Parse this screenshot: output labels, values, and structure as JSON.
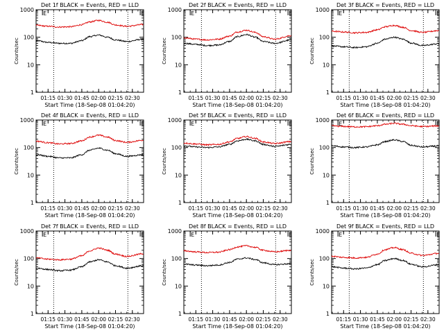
{
  "figure": {
    "time_ticks": [
      "01:15",
      "01:30",
      "01:45",
      "02:00",
      "02:15",
      "02:30"
    ],
    "y_ticks": [
      "1",
      "10",
      "100",
      "1000"
    ],
    "ylabel": "Counts/sec",
    "xlabel": "Start Time (18-Sep-08 01:04:20)",
    "event_marker_label": "E",
    "colors": {
      "events": "#000000",
      "lld": "#dd0000",
      "axes": "#000000"
    }
  },
  "chart_data": [
    {
      "type": "line",
      "title": "Det 1f BLACK = Events, RED = LLD",
      "x_range": [
        "01:04:20",
        "02:40"
      ],
      "ylim": [
        1,
        1000
      ],
      "yscale": "log",
      "event_marks": [
        "01:10",
        "02:37"
      ],
      "marked_times": [
        "01:20",
        "02:26"
      ],
      "series": [
        {
          "label": "Events",
          "x": [
            "01:05",
            "01:15",
            "01:25",
            "01:35",
            "01:45",
            "01:52",
            "02:00",
            "02:08",
            "02:15",
            "02:25",
            "02:40"
          ],
          "y": [
            75,
            65,
            60,
            60,
            75,
            105,
            120,
            100,
            80,
            70,
            85
          ]
        },
        {
          "label": "LLD",
          "x": [
            "01:05",
            "01:15",
            "01:25",
            "01:35",
            "01:45",
            "01:52",
            "02:00",
            "02:08",
            "02:15",
            "02:25",
            "02:40"
          ],
          "y": [
            270,
            250,
            235,
            240,
            285,
            360,
            410,
            350,
            280,
            250,
            290
          ]
        }
      ]
    },
    {
      "type": "line",
      "title": "Det 2f BLACK = Events, RED = LLD",
      "x_range": [
        "01:04:20",
        "02:40"
      ],
      "ylim": [
        1,
        1000
      ],
      "yscale": "log",
      "event_marks": [
        "01:10",
        "02:37"
      ],
      "marked_times": [
        "01:20",
        "02:26"
      ],
      "series": [
        {
          "label": "Events",
          "x": [
            "01:05",
            "01:15",
            "01:25",
            "01:35",
            "01:45",
            "01:52",
            "02:00",
            "02:08",
            "02:15",
            "02:25",
            "02:40"
          ],
          "y": [
            60,
            55,
            50,
            52,
            70,
            105,
            125,
            100,
            70,
            60,
            80
          ]
        },
        {
          "label": "LLD",
          "x": [
            "01:05",
            "01:15",
            "01:25",
            "01:35",
            "01:45",
            "01:52",
            "02:00",
            "02:08",
            "02:15",
            "02:25",
            "02:40"
          ],
          "y": [
            95,
            85,
            80,
            85,
            110,
            155,
            180,
            150,
            105,
            85,
            115
          ]
        }
      ]
    },
    {
      "type": "line",
      "title": "Det 3f BLACK = Events, RED = LLD",
      "x_range": [
        "01:04:20",
        "02:40"
      ],
      "ylim": [
        1,
        1000
      ],
      "yscale": "log",
      "event_marks": [
        "01:10",
        "02:37"
      ],
      "marked_times": [
        "01:20",
        "02:26"
      ],
      "series": [
        {
          "label": "Events",
          "x": [
            "01:05",
            "01:15",
            "01:25",
            "01:35",
            "01:45",
            "01:52",
            "02:00",
            "02:08",
            "02:15",
            "02:25",
            "02:40"
          ],
          "y": [
            48,
            45,
            42,
            45,
            60,
            85,
            100,
            85,
            62,
            50,
            58
          ]
        },
        {
          "label": "LLD",
          "x": [
            "01:05",
            "01:15",
            "01:25",
            "01:35",
            "01:45",
            "01:52",
            "02:00",
            "02:08",
            "02:15",
            "02:25",
            "02:40"
          ],
          "y": [
            165,
            155,
            145,
            150,
            185,
            240,
            270,
            230,
            175,
            150,
            175
          ]
        }
      ]
    },
    {
      "type": "line",
      "title": "Det 4f BLACK = Events, RED = LLD",
      "x_range": [
        "01:04:20",
        "02:40"
      ],
      "ylim": [
        1,
        1000
      ],
      "yscale": "log",
      "event_marks": [
        "01:10",
        "02:37"
      ],
      "marked_times": [
        "01:20",
        "02:26"
      ],
      "series": [
        {
          "label": "Events",
          "x": [
            "01:05",
            "01:15",
            "01:25",
            "01:35",
            "01:45",
            "01:52",
            "02:00",
            "02:08",
            "02:15",
            "02:25",
            "02:40"
          ],
          "y": [
            55,
            48,
            42,
            42,
            55,
            80,
            95,
            80,
            60,
            48,
            55
          ]
        },
        {
          "label": "LLD",
          "x": [
            "01:05",
            "01:15",
            "01:25",
            "01:35",
            "01:45",
            "01:52",
            "02:00",
            "02:08",
            "02:15",
            "02:25",
            "02:40"
          ],
          "y": [
            170,
            150,
            135,
            140,
            175,
            240,
            280,
            240,
            180,
            155,
            185
          ]
        }
      ]
    },
    {
      "type": "line",
      "title": "Det 5f BLACK = Events, RED = LLD",
      "x_range": [
        "01:04:20",
        "02:40"
      ],
      "ylim": [
        1,
        1000
      ],
      "yscale": "log",
      "event_marks": [
        "01:10",
        "02:37"
      ],
      "marked_times": [
        "01:20",
        "02:26"
      ],
      "series": [
        {
          "label": "Events",
          "x": [
            "01:05",
            "01:15",
            "01:25",
            "01:35",
            "01:45",
            "01:52",
            "02:00",
            "02:08",
            "02:15",
            "02:25",
            "02:40"
          ],
          "y": [
            115,
            105,
            100,
            105,
            130,
            175,
            200,
            175,
            130,
            110,
            130
          ]
        },
        {
          "label": "LLD",
          "x": [
            "01:05",
            "01:15",
            "01:25",
            "01:35",
            "01:45",
            "01:52",
            "02:00",
            "02:08",
            "02:15",
            "02:25",
            "02:40"
          ],
          "y": [
            145,
            135,
            125,
            130,
            160,
            215,
            250,
            215,
            160,
            140,
            165
          ]
        }
      ]
    },
    {
      "type": "line",
      "title": "Det 6f BLACK = Events, RED = LLD",
      "x_range": [
        "01:04:20",
        "02:40"
      ],
      "ylim": [
        1,
        1000
      ],
      "yscale": "log",
      "event_marks": [
        "01:10",
        "02:37"
      ],
      "marked_times": [
        "01:20",
        "02:26"
      ],
      "series": [
        {
          "label": "Events",
          "x": [
            "01:05",
            "01:15",
            "01:25",
            "01:35",
            "01:45",
            "01:52",
            "02:00",
            "02:08",
            "02:15",
            "02:25",
            "02:40"
          ],
          "y": [
            115,
            105,
            100,
            105,
            125,
            165,
            190,
            165,
            120,
            105,
            115
          ]
        },
        {
          "label": "LLD",
          "x": [
            "01:05",
            "01:15",
            "01:25",
            "01:35",
            "01:45",
            "01:52",
            "02:00",
            "02:08",
            "02:15",
            "02:25",
            "02:40"
          ],
          "y": [
            610,
            585,
            565,
            570,
            620,
            700,
            760,
            700,
            620,
            580,
            610
          ]
        }
      ]
    },
    {
      "type": "line",
      "title": "Det 7f BLACK = Events, RED = LLD",
      "x_range": [
        "01:04:20",
        "02:40"
      ],
      "ylim": [
        1,
        1000
      ],
      "yscale": "log",
      "event_marks": [
        "01:10",
        "02:37"
      ],
      "marked_times": [
        "01:20",
        "02:26"
      ],
      "series": [
        {
          "label": "Events",
          "x": [
            "01:05",
            "01:15",
            "01:25",
            "01:35",
            "01:45",
            "01:52",
            "02:00",
            "02:08",
            "02:15",
            "02:25",
            "02:40"
          ],
          "y": [
            45,
            40,
            36,
            38,
            50,
            75,
            90,
            75,
            55,
            45,
            55
          ]
        },
        {
          "label": "LLD",
          "x": [
            "01:05",
            "01:15",
            "01:25",
            "01:35",
            "01:45",
            "01:52",
            "02:00",
            "02:08",
            "02:15",
            "02:25",
            "02:40"
          ],
          "y": [
            105,
            95,
            90,
            95,
            125,
            190,
            240,
            200,
            145,
            120,
            150
          ]
        }
      ]
    },
    {
      "type": "line",
      "title": "Det 8f BLACK = Events, RED = LLD",
      "x_range": [
        "01:04:20",
        "02:40"
      ],
      "ylim": [
        1,
        1000
      ],
      "yscale": "log",
      "event_marks": [
        "01:10",
        "02:37"
      ],
      "marked_times": [
        "01:20",
        "02:26"
      ],
      "series": [
        {
          "label": "Events",
          "x": [
            "01:05",
            "01:15",
            "01:25",
            "01:35",
            "01:45",
            "01:52",
            "02:00",
            "02:08",
            "02:15",
            "02:25",
            "02:40"
          ],
          "y": [
            62,
            58,
            55,
            58,
            72,
            95,
            105,
            92,
            70,
            60,
            65
          ]
        },
        {
          "label": "LLD",
          "x": [
            "01:05",
            "01:15",
            "01:25",
            "01:35",
            "01:45",
            "01:52",
            "02:00",
            "02:08",
            "02:15",
            "02:25",
            "02:40"
          ],
          "y": [
            190,
            175,
            165,
            170,
            210,
            265,
            290,
            255,
            200,
            175,
            200
          ]
        }
      ]
    },
    {
      "type": "line",
      "title": "Det 9f BLACK = Events, RED = LLD",
      "x_range": [
        "01:04:20",
        "02:40"
      ],
      "ylim": [
        1,
        1000
      ],
      "yscale": "log",
      "event_marks": [
        "01:10",
        "02:37"
      ],
      "marked_times": [
        "01:20",
        "02:26"
      ],
      "series": [
        {
          "label": "Events",
          "x": [
            "01:05",
            "01:15",
            "01:25",
            "01:35",
            "01:45",
            "01:52",
            "02:00",
            "02:08",
            "02:15",
            "02:25",
            "02:40"
          ],
          "y": [
            50,
            45,
            42,
            45,
            60,
            85,
            100,
            85,
            62,
            50,
            60
          ]
        },
        {
          "label": "LLD",
          "x": [
            "01:05",
            "01:15",
            "01:25",
            "01:35",
            "01:45",
            "01:52",
            "02:00",
            "02:08",
            "02:15",
            "02:25",
            "02:40"
          ],
          "y": [
            120,
            110,
            105,
            110,
            145,
            210,
            250,
            210,
            155,
            130,
            155
          ]
        }
      ]
    }
  ]
}
